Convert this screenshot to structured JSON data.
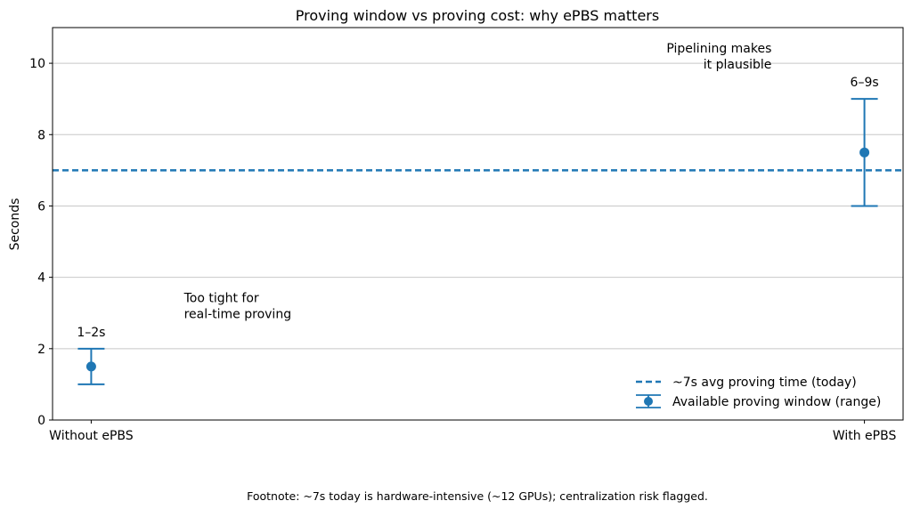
{
  "chart_data": {
    "type": "errorbar",
    "title": "Proving window vs proving cost: why ePBS matters",
    "xlabel": "",
    "ylabel": "Seconds",
    "categories": [
      "Without ePBS",
      "With ePBS"
    ],
    "ylim": [
      0,
      11
    ],
    "yticks": [
      0,
      2,
      4,
      6,
      8,
      10
    ],
    "grid": "y",
    "series": [
      {
        "name": "Available proving window (range)",
        "points": [
          {
            "category": "Without ePBS",
            "value": 1.5,
            "low": 1,
            "high": 2,
            "label": "1–2s"
          },
          {
            "category": "With ePBS",
            "value": 7.5,
            "low": 6,
            "high": 9,
            "label": "6–9s"
          }
        ]
      }
    ],
    "reference_line": {
      "name": "~7s avg proving time (today)",
      "value": 7,
      "style": "dashed"
    },
    "annotations": [
      {
        "lines": [
          "Too tight for",
          "real-time proving"
        ],
        "x": 0.12,
        "y": 3.3,
        "align": "left"
      },
      {
        "lines": [
          "Pipelining makes",
          "it plausible"
        ],
        "x": 0.88,
        "y": 10.3,
        "align": "right"
      }
    ],
    "legend": "lower-right",
    "color": "#1f77b4",
    "footnote": "Footnote: ~7s today is hardware-intensive (~12 GPUs); centralization risk flagged."
  }
}
